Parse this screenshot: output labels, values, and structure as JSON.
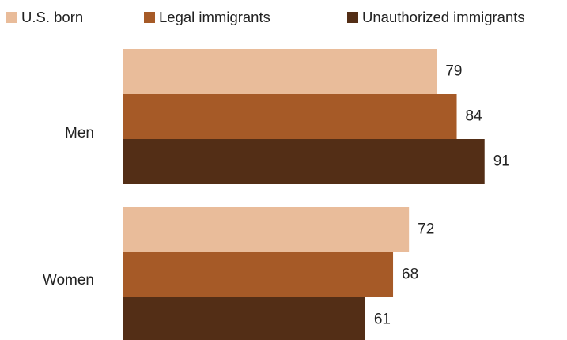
{
  "chart_data": {
    "type": "bar",
    "orientation": "horizontal",
    "title": "",
    "xlabel": "",
    "ylabel": "",
    "legend_position": "top",
    "grid": false,
    "xlim": [
      0,
      100
    ],
    "categories": [
      "Men",
      "Women"
    ],
    "series": [
      {
        "name": "U.S. born",
        "color": "#e9bc9a",
        "values": [
          79,
          72
        ]
      },
      {
        "name": "Legal immigrants",
        "color": "#a65a27",
        "values": [
          84,
          68
        ]
      },
      {
        "name": "Unauthorized immigrants",
        "color": "#532e16",
        "values": [
          91,
          61
        ]
      }
    ]
  }
}
